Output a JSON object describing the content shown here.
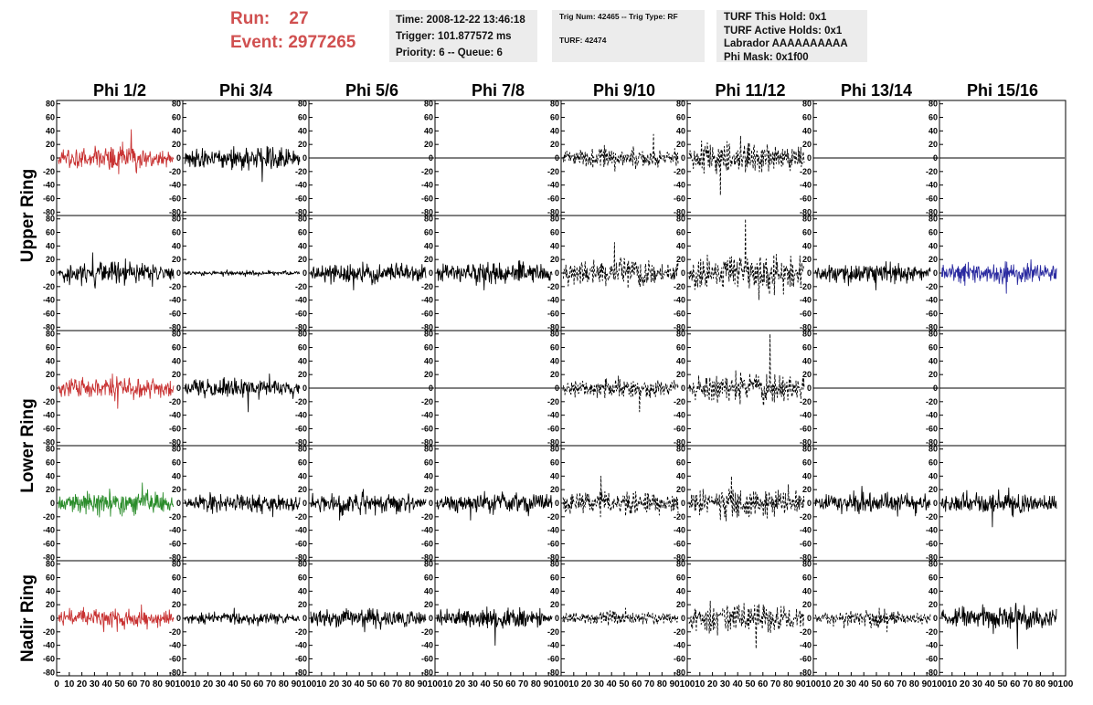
{
  "header": {
    "run_label": "Run:",
    "run_value": "27",
    "event_label": "Event:",
    "event_value": "2977265"
  },
  "info1": {
    "time": "Time: 2008-12-22 13:46:18",
    "trigger": "Trigger: 101.877572 ms",
    "priority": "Priority: 6 -- Queue: 6"
  },
  "info2": {
    "trig": "Trig Num: 42465 -- Trig Type: RF",
    "turf": "TURF: 42474"
  },
  "info3": {
    "this_hold": "TURF This Hold: 0x1",
    "active_holds": "TURF Active Holds: 0x1",
    "labrador": "Labrador AAAAAAAAAA",
    "phi_mask": "Phi Mask: 0x1f00"
  },
  "colors": {
    "red": "#c83232",
    "green": "#2a8c2a",
    "blue": "#2a2aa0",
    "black": "#000000",
    "header_red": "#d05050",
    "info_bg": "#ececec"
  },
  "chart_data": {
    "type": "line",
    "columns": [
      "Phi 1/2",
      "Phi 3/4",
      "Phi 5/6",
      "Phi 7/8",
      "Phi 9/10",
      "Phi 11/12",
      "Phi 13/14",
      "Phi 15/16"
    ],
    "row_groups": [
      {
        "label": "Upper Ring",
        "rows": 2
      },
      {
        "label": "Lower Ring",
        "rows": 2
      },
      {
        "label": "Nadir Ring",
        "rows": 1
      }
    ],
    "ylim": [
      -85,
      85
    ],
    "yticks": [
      80,
      60,
      40,
      20,
      0,
      -20,
      -40,
      -60,
      -80
    ],
    "xlim": [
      0,
      100
    ],
    "xticks": [
      0,
      10,
      20,
      30,
      40,
      50,
      60,
      70,
      80,
      90,
      100
    ],
    "panels": [
      [
        {
          "color": "red",
          "style": "solid",
          "amp": 15,
          "peak": 42
        },
        {
          "color": "black",
          "style": "solid",
          "amp": 14,
          "peak": 35
        },
        {
          "color": "black",
          "style": "flat",
          "amp": 0,
          "peak": 0
        },
        {
          "color": "black",
          "style": "flat",
          "amp": 0,
          "peak": 0
        },
        {
          "color": "black",
          "style": "dashed",
          "amp": 12,
          "peak": 35
        },
        {
          "color": "black",
          "style": "dashed",
          "amp": 19,
          "peak": 55
        },
        {
          "color": "black",
          "style": "flat",
          "amp": 0,
          "peak": 0
        },
        {
          "color": "black",
          "style": "flat",
          "amp": 0,
          "peak": 0
        }
      ],
      [
        {
          "color": "black",
          "style": "solid",
          "amp": 14,
          "peak": 30
        },
        {
          "color": "black",
          "style": "solid",
          "amp": 3,
          "peak": 5
        },
        {
          "color": "black",
          "style": "solid",
          "amp": 13,
          "peak": 25
        },
        {
          "color": "black",
          "style": "solid",
          "amp": 14,
          "peak": 25
        },
        {
          "color": "black",
          "style": "dashed",
          "amp": 18,
          "peak": 45
        },
        {
          "color": "black",
          "style": "dashed",
          "amp": 24,
          "peak": 80
        },
        {
          "color": "black",
          "style": "solid",
          "amp": 12,
          "peak": 25
        },
        {
          "color": "blue",
          "style": "solid",
          "amp": 14,
          "peak": 30
        }
      ],
      [
        {
          "color": "red",
          "style": "solid",
          "amp": 13,
          "peak": 30
        },
        {
          "color": "black",
          "style": "solid",
          "amp": 13,
          "peak": 35
        },
        {
          "color": "black",
          "style": "flat",
          "amp": 0,
          "peak": 0
        },
        {
          "color": "black",
          "style": "flat",
          "amp": 0,
          "peak": 0
        },
        {
          "color": "black",
          "style": "dashed",
          "amp": 12,
          "peak": 35
        },
        {
          "color": "black",
          "style": "dashed",
          "amp": 17,
          "peak": 80
        },
        {
          "color": "black",
          "style": "flat",
          "amp": 0,
          "peak": 0
        },
        {
          "color": "black",
          "style": "flat",
          "amp": 0,
          "peak": 0
        }
      ],
      [
        {
          "color": "green",
          "style": "solid",
          "amp": 15,
          "peak": 30
        },
        {
          "color": "black",
          "style": "solid",
          "amp": 11,
          "peak": 20
        },
        {
          "color": "black",
          "style": "solid",
          "amp": 13,
          "peak": 25
        },
        {
          "color": "black",
          "style": "solid",
          "amp": 13,
          "peak": 25
        },
        {
          "color": "black",
          "style": "dashed",
          "amp": 15,
          "peak": 40
        },
        {
          "color": "black",
          "style": "dashed",
          "amp": 18,
          "peak": 40
        },
        {
          "color": "black",
          "style": "solid",
          "amp": 12,
          "peak": 25
        },
        {
          "color": "black",
          "style": "solid",
          "amp": 14,
          "peak": 35
        }
      ],
      [
        {
          "color": "red",
          "style": "solid",
          "amp": 13,
          "peak": 20
        },
        {
          "color": "black",
          "style": "solid",
          "amp": 7,
          "peak": 15
        },
        {
          "color": "black",
          "style": "solid",
          "amp": 11,
          "peak": 20
        },
        {
          "color": "black",
          "style": "solid",
          "amp": 12,
          "peak": 40
        },
        {
          "color": "black",
          "style": "dashed",
          "amp": 8,
          "peak": 15
        },
        {
          "color": "black",
          "style": "dashed",
          "amp": 18,
          "peak": 45
        },
        {
          "color": "black",
          "style": "dashed",
          "amp": 10,
          "peak": 20
        },
        {
          "color": "black",
          "style": "solid",
          "amp": 14,
          "peak": 45
        }
      ]
    ]
  }
}
